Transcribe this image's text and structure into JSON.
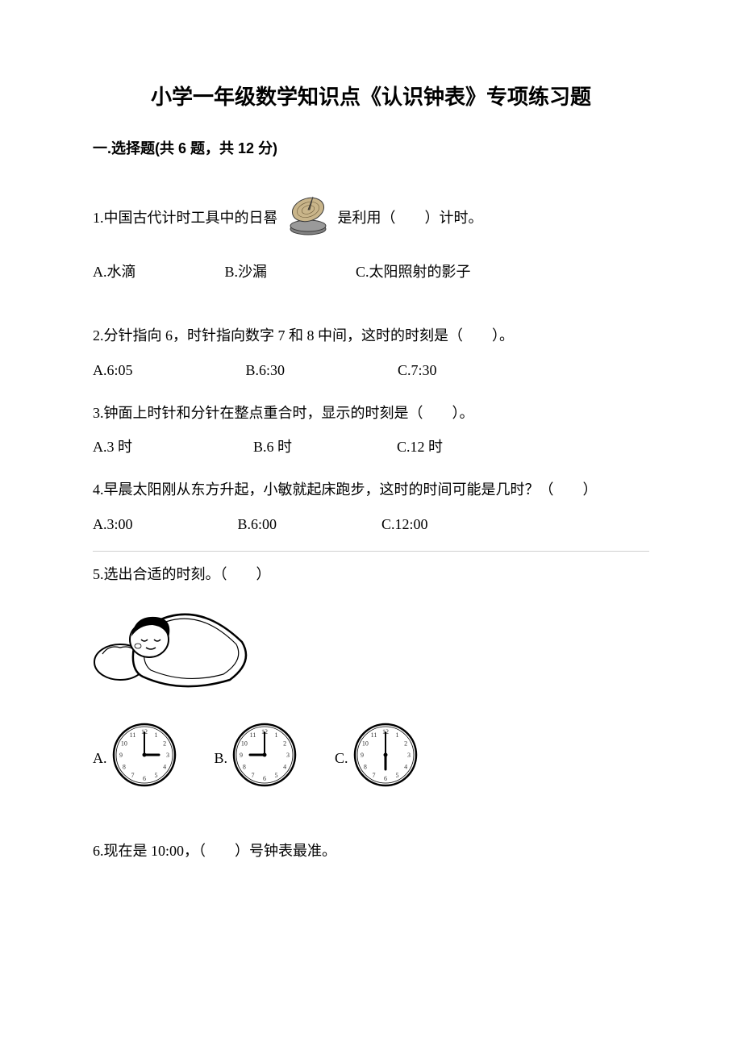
{
  "title": "小学一年级数学知识点《认识钟表》专项练习题",
  "section1": {
    "header": "一.选择题(共 6 题，共 12 分)"
  },
  "q1": {
    "pre": "1.中国古代计时工具中的日晷",
    "post": "是利用（　　）计时。",
    "a": "A.水滴",
    "b": "B.沙漏",
    "c": "C.太阳照射的影子",
    "icon_colors": {
      "top": "#c9b58a",
      "base": "#808080",
      "outline": "#3a3a3a"
    }
  },
  "q2": {
    "text": "2.分针指向 6，时针指向数字 7 和 8 中间，这时的时刻是（　　）。",
    "a": "A.6:05",
    "b": "B.6:30",
    "c": "C.7:30"
  },
  "q3": {
    "text": "3.钟面上时针和分针在整点重合时，显示的时刻是（　　）。",
    "a": "A.3 时",
    "b": "B.6 时",
    "c": "C.12 时"
  },
  "q4": {
    "text": "4.早晨太阳刚从东方升起，小敏就起床跑步，这时的时间可能是几时？（　　）",
    "a": "A.3:00",
    "b": "B.6:00",
    "c": "C.12:00"
  },
  "q5": {
    "text": "5.选出合适的时刻。（　　）",
    "a": "A.",
    "b": "B.",
    "c": "C.",
    "clockA": {
      "hour": 3,
      "minute": 0
    },
    "clockB": {
      "hour": 9,
      "minute": 0
    },
    "clockC": {
      "hour": 6,
      "minute": 0
    },
    "clock_style": {
      "radius": 38,
      "stroke": "#000000",
      "fill": "#ffffff",
      "tick_color": "#333333",
      "num_font": 8
    },
    "sleep_colors": {
      "outline": "#000000",
      "pillow": "#ffffff",
      "hair": "#000000"
    }
  },
  "q6": {
    "text": "6.现在是 10:00，（　　）号钟表最准。"
  }
}
